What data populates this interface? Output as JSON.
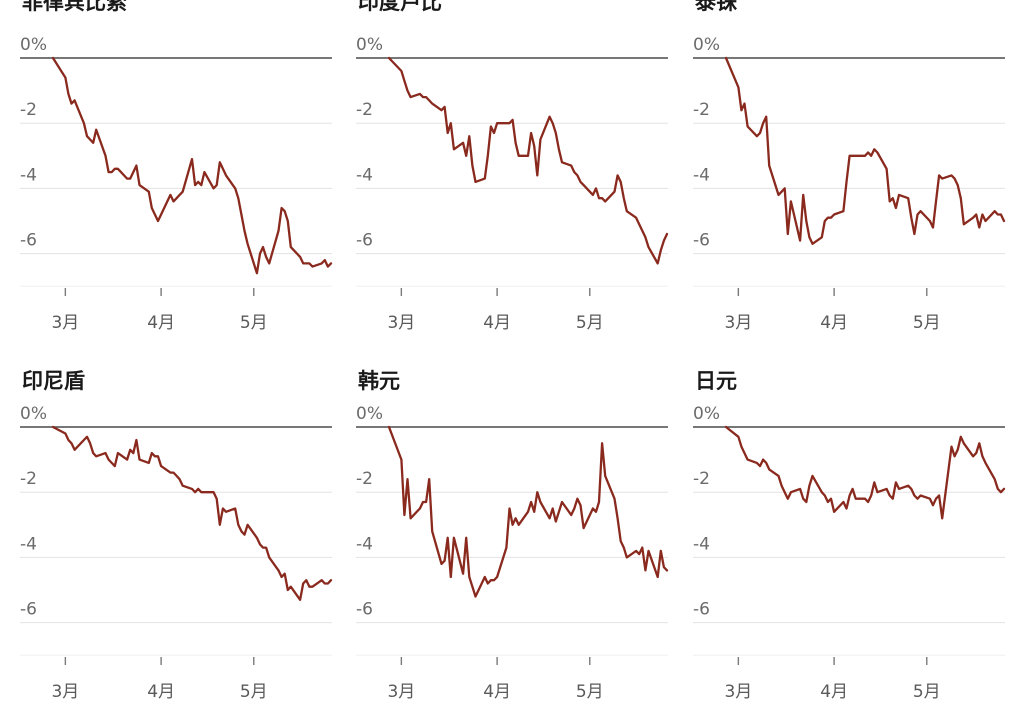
{
  "chart_data": [
    {
      "type": "line",
      "title": "菲律宾比索",
      "y_ticks": [
        "0%",
        "-2",
        "-4",
        "-6"
      ],
      "ylim": [
        -7.2,
        0
      ],
      "x_ticks": [
        "3月",
        "4月",
        "5月"
      ],
      "color": "#8a2a1e",
      "x": [
        "2022-02-25",
        "2022-03-01",
        "2022-03-02",
        "2022-03-03",
        "2022-03-04",
        "2022-03-07",
        "2022-03-08",
        "2022-03-09",
        "2022-03-10",
        "2022-03-11",
        "2022-03-14",
        "2022-03-15",
        "2022-03-16",
        "2022-03-17",
        "2022-03-18",
        "2022-03-21",
        "2022-03-22",
        "2022-03-23",
        "2022-03-24",
        "2022-03-25",
        "2022-03-28",
        "2022-03-29",
        "2022-03-30",
        "2022-03-31",
        "2022-04-01",
        "2022-04-04",
        "2022-04-05",
        "2022-04-06",
        "2022-04-07",
        "2022-04-08",
        "2022-04-11",
        "2022-04-12",
        "2022-04-13",
        "2022-04-14",
        "2022-04-15",
        "2022-04-18",
        "2022-04-19",
        "2022-04-20",
        "2022-04-21",
        "2022-04-22",
        "2022-04-25",
        "2022-04-26",
        "2022-04-27",
        "2022-04-28",
        "2022-04-29",
        "2022-05-02",
        "2022-05-03",
        "2022-05-04",
        "2022-05-05",
        "2022-05-06",
        "2022-05-09",
        "2022-05-10",
        "2022-05-11",
        "2022-05-12",
        "2022-05-13",
        "2022-05-16",
        "2022-05-17",
        "2022-05-18",
        "2022-05-19",
        "2022-05-20",
        "2022-05-23",
        "2022-05-24",
        "2022-05-25",
        "2022-05-26"
      ],
      "values": [
        0,
        -0.6,
        -1.1,
        -1.4,
        -1.3,
        -2.0,
        -2.4,
        -2.5,
        -2.6,
        -2.2,
        -3.0,
        -3.5,
        -3.5,
        -3.4,
        -3.4,
        -3.7,
        -3.7,
        -3.5,
        -3.3,
        -3.9,
        -4.1,
        -4.6,
        -4.8,
        -5.0,
        -4.8,
        -4.2,
        -4.4,
        -4.3,
        -4.2,
        -4.1,
        -3.1,
        -3.9,
        -3.8,
        -3.9,
        -3.5,
        -4.0,
        -3.9,
        -3.2,
        -3.4,
        -3.6,
        -4.0,
        -4.3,
        -4.8,
        -5.3,
        -5.7,
        -6.6,
        -6.0,
        -5.8,
        -6.1,
        -6.3,
        -5.3,
        -4.6,
        -4.7,
        -5.0,
        -5.8,
        -6.1,
        -6.3,
        -6.3,
        -6.3,
        -6.4,
        -6.3,
        -6.2,
        -6.4,
        -6.3
      ]
    },
    {
      "type": "line",
      "title": "印度卢比",
      "y_ticks": [
        "0%",
        "-2",
        "-4",
        "-6"
      ],
      "ylim": [
        -7.2,
        0
      ],
      "x_ticks": [
        "3月",
        "4月",
        "5月"
      ],
      "color": "#8a2a1e",
      "x": [
        "2022-02-25",
        "2022-03-01",
        "2022-03-02",
        "2022-03-03",
        "2022-03-04",
        "2022-03-07",
        "2022-03-08",
        "2022-03-09",
        "2022-03-10",
        "2022-03-11",
        "2022-03-14",
        "2022-03-15",
        "2022-03-16",
        "2022-03-17",
        "2022-03-18",
        "2022-03-21",
        "2022-03-22",
        "2022-03-23",
        "2022-03-24",
        "2022-03-25",
        "2022-03-28",
        "2022-03-29",
        "2022-03-30",
        "2022-03-31",
        "2022-04-01",
        "2022-04-04",
        "2022-04-05",
        "2022-04-06",
        "2022-04-07",
        "2022-04-08",
        "2022-04-11",
        "2022-04-12",
        "2022-04-13",
        "2022-04-14",
        "2022-04-15",
        "2022-04-18",
        "2022-04-19",
        "2022-04-20",
        "2022-04-21",
        "2022-04-22",
        "2022-04-25",
        "2022-04-26",
        "2022-04-27",
        "2022-04-28",
        "2022-04-29",
        "2022-05-02",
        "2022-05-03",
        "2022-05-04",
        "2022-05-05",
        "2022-05-06",
        "2022-05-09",
        "2022-05-10",
        "2022-05-11",
        "2022-05-12",
        "2022-05-13",
        "2022-05-16",
        "2022-05-17",
        "2022-05-18",
        "2022-05-19",
        "2022-05-20",
        "2022-05-23",
        "2022-05-24",
        "2022-05-25",
        "2022-05-26"
      ],
      "values": [
        0,
        -0.4,
        -0.7,
        -1.0,
        -1.2,
        -1.1,
        -1.2,
        -1.2,
        -1.3,
        -1.4,
        -1.6,
        -1.5,
        -2.3,
        -2.0,
        -2.8,
        -2.6,
        -3.0,
        -2.4,
        -3.3,
        -3.8,
        -3.7,
        -3.0,
        -2.1,
        -2.3,
        -2.0,
        -2.0,
        -2.0,
        -1.9,
        -2.6,
        -3.0,
        -3.0,
        -2.3,
        -2.7,
        -3.6,
        -2.5,
        -1.8,
        -2.0,
        -2.3,
        -2.8,
        -3.2,
        -3.3,
        -3.5,
        -3.6,
        -3.8,
        -3.9,
        -4.2,
        -4.0,
        -4.3,
        -4.3,
        -4.4,
        -4.1,
        -3.6,
        -3.8,
        -4.3,
        -4.7,
        -4.9,
        -5.1,
        -5.3,
        -5.5,
        -5.8,
        -6.3,
        -5.9,
        -5.6,
        -5.4
      ]
    },
    {
      "type": "line",
      "title": "泰铢",
      "y_ticks": [
        "0%",
        "-2",
        "-4",
        "-6"
      ],
      "ylim": [
        -7.2,
        0
      ],
      "x_ticks": [
        "3月",
        "4月",
        "5月"
      ],
      "color": "#8a2a1e",
      "x": [
        "2022-02-25",
        "2022-03-01",
        "2022-03-02",
        "2022-03-03",
        "2022-03-04",
        "2022-03-07",
        "2022-03-08",
        "2022-03-09",
        "2022-03-10",
        "2022-03-11",
        "2022-03-14",
        "2022-03-15",
        "2022-03-16",
        "2022-03-17",
        "2022-03-18",
        "2022-03-21",
        "2022-03-22",
        "2022-03-23",
        "2022-03-24",
        "2022-03-25",
        "2022-03-28",
        "2022-03-29",
        "2022-03-30",
        "2022-03-31",
        "2022-04-01",
        "2022-04-04",
        "2022-04-05",
        "2022-04-06",
        "2022-04-07",
        "2022-04-08",
        "2022-04-11",
        "2022-04-12",
        "2022-04-13",
        "2022-04-14",
        "2022-04-15",
        "2022-04-18",
        "2022-04-19",
        "2022-04-20",
        "2022-04-21",
        "2022-04-22",
        "2022-04-25",
        "2022-04-26",
        "2022-04-27",
        "2022-04-28",
        "2022-04-29",
        "2022-05-02",
        "2022-05-03",
        "2022-05-04",
        "2022-05-05",
        "2022-05-06",
        "2022-05-09",
        "2022-05-10",
        "2022-05-11",
        "2022-05-12",
        "2022-05-13",
        "2022-05-16",
        "2022-05-17",
        "2022-05-18",
        "2022-05-19",
        "2022-05-20",
        "2022-05-23",
        "2022-05-24",
        "2022-05-25",
        "2022-05-26"
      ],
      "values": [
        0,
        -0.9,
        -1.6,
        -1.4,
        -2.1,
        -2.4,
        -2.3,
        -2.0,
        -1.8,
        -3.3,
        -4.2,
        -4.1,
        -4.0,
        -5.4,
        -4.4,
        -5.6,
        -4.2,
        -5.0,
        -5.5,
        -5.7,
        -5.5,
        -5.0,
        -4.9,
        -4.9,
        -4.8,
        -4.7,
        -3.8,
        -3.0,
        -3.0,
        -3.0,
        -3.0,
        -2.9,
        -3.0,
        -2.8,
        -2.9,
        -3.4,
        -4.4,
        -4.3,
        -4.6,
        -4.2,
        -4.3,
        -4.9,
        -5.4,
        -4.8,
        -4.7,
        -5.0,
        -5.2,
        -4.4,
        -3.6,
        -3.7,
        -3.6,
        -3.7,
        -3.9,
        -4.3,
        -5.1,
        -4.9,
        -4.8,
        -5.2,
        -4.8,
        -5.0,
        -4.7,
        -4.8,
        -4.8,
        -5.0
      ]
    },
    {
      "type": "line",
      "title": "印尼盾",
      "y_ticks": [
        "0%",
        "-2",
        "-4",
        "-6"
      ],
      "ylim": [
        -7.2,
        0
      ],
      "x_ticks": [
        "3月",
        "4月",
        "5月"
      ],
      "color": "#8a2a1e",
      "x": [
        "2022-02-25",
        "2022-03-01",
        "2022-03-02",
        "2022-03-03",
        "2022-03-04",
        "2022-03-07",
        "2022-03-08",
        "2022-03-09",
        "2022-03-10",
        "2022-03-11",
        "2022-03-14",
        "2022-03-15",
        "2022-03-16",
        "2022-03-17",
        "2022-03-18",
        "2022-03-21",
        "2022-03-22",
        "2022-03-23",
        "2022-03-24",
        "2022-03-25",
        "2022-03-28",
        "2022-03-29",
        "2022-03-30",
        "2022-03-31",
        "2022-04-01",
        "2022-04-04",
        "2022-04-05",
        "2022-04-06",
        "2022-04-07",
        "2022-04-08",
        "2022-04-11",
        "2022-04-12",
        "2022-04-13",
        "2022-04-14",
        "2022-04-15",
        "2022-04-18",
        "2022-04-19",
        "2022-04-20",
        "2022-04-21",
        "2022-04-22",
        "2022-04-25",
        "2022-04-26",
        "2022-04-27",
        "2022-04-28",
        "2022-04-29",
        "2022-05-02",
        "2022-05-03",
        "2022-05-04",
        "2022-05-05",
        "2022-05-06",
        "2022-05-09",
        "2022-05-10",
        "2022-05-11",
        "2022-05-12",
        "2022-05-13",
        "2022-05-16",
        "2022-05-17",
        "2022-05-18",
        "2022-05-19",
        "2022-05-20",
        "2022-05-23",
        "2022-05-24",
        "2022-05-25",
        "2022-05-26"
      ],
      "values": [
        0,
        -0.2,
        -0.4,
        -0.5,
        -0.7,
        -0.4,
        -0.3,
        -0.5,
        -0.8,
        -0.9,
        -0.8,
        -1.0,
        -1.1,
        -1.2,
        -0.8,
        -1.0,
        -0.7,
        -0.8,
        -0.4,
        -1.0,
        -1.1,
        -0.8,
        -0.9,
        -0.9,
        -1.2,
        -1.4,
        -1.4,
        -1.5,
        -1.6,
        -1.8,
        -1.9,
        -2.0,
        -1.9,
        -2.0,
        -2.0,
        -2.0,
        -2.2,
        -3.0,
        -2.5,
        -2.6,
        -2.5,
        -3.0,
        -3.2,
        -3.3,
        -3.0,
        -3.4,
        -3.6,
        -3.7,
        -3.7,
        -4.0,
        -4.4,
        -4.6,
        -4.5,
        -5.0,
        -4.9,
        -5.3,
        -4.8,
        -4.7,
        -4.9,
        -4.9,
        -4.7,
        -4.8,
        -4.8,
        -4.7
      ]
    },
    {
      "type": "line",
      "title": "韩元",
      "y_ticks": [
        "0%",
        "-2",
        "-4",
        "-6"
      ],
      "ylim": [
        -7.2,
        0
      ],
      "x_ticks": [
        "3月",
        "4月",
        "5月"
      ],
      "color": "#8a2a1e",
      "x": [
        "2022-02-25",
        "2022-03-01",
        "2022-03-02",
        "2022-03-03",
        "2022-03-04",
        "2022-03-07",
        "2022-03-08",
        "2022-03-09",
        "2022-03-10",
        "2022-03-11",
        "2022-03-14",
        "2022-03-15",
        "2022-03-16",
        "2022-03-17",
        "2022-03-18",
        "2022-03-21",
        "2022-03-22",
        "2022-03-23",
        "2022-03-24",
        "2022-03-25",
        "2022-03-28",
        "2022-03-29",
        "2022-03-30",
        "2022-03-31",
        "2022-04-01",
        "2022-04-04",
        "2022-04-05",
        "2022-04-06",
        "2022-04-07",
        "2022-04-08",
        "2022-04-11",
        "2022-04-12",
        "2022-04-13",
        "2022-04-14",
        "2022-04-15",
        "2022-04-18",
        "2022-04-19",
        "2022-04-20",
        "2022-04-21",
        "2022-04-22",
        "2022-04-25",
        "2022-04-26",
        "2022-04-27",
        "2022-04-28",
        "2022-04-29",
        "2022-05-02",
        "2022-05-03",
        "2022-05-04",
        "2022-05-05",
        "2022-05-06",
        "2022-05-09",
        "2022-05-10",
        "2022-05-11",
        "2022-05-12",
        "2022-05-13",
        "2022-05-16",
        "2022-05-17",
        "2022-05-18",
        "2022-05-19",
        "2022-05-20",
        "2022-05-23",
        "2022-05-24",
        "2022-05-25",
        "2022-05-26"
      ],
      "values": [
        0,
        -1.0,
        -2.7,
        -1.6,
        -2.8,
        -2.5,
        -2.3,
        -2.3,
        -1.6,
        -3.2,
        -4.2,
        -4.1,
        -3.4,
        -4.6,
        -3.4,
        -4.5,
        -3.4,
        -4.6,
        -4.9,
        -5.2,
        -4.6,
        -4.8,
        -4.7,
        -4.7,
        -4.6,
        -3.7,
        -2.5,
        -3.0,
        -2.8,
        -3.0,
        -2.6,
        -2.3,
        -2.6,
        -2.0,
        -2.3,
        -2.8,
        -2.5,
        -2.9,
        -2.6,
        -2.3,
        -2.7,
        -2.5,
        -2.2,
        -2.4,
        -3.1,
        -2.5,
        -2.6,
        -2.3,
        -0.5,
        -1.5,
        -2.2,
        -2.8,
        -3.5,
        -3.7,
        -4.0,
        -3.8,
        -3.9,
        -3.7,
        -4.4,
        -3.8,
        -4.6,
        -3.8,
        -4.3,
        -4.4
      ]
    },
    {
      "type": "line",
      "title": "日元",
      "y_ticks": [
        "0%",
        "-2",
        "-4",
        "-6"
      ],
      "ylim": [
        -7.2,
        0
      ],
      "x_ticks": [
        "3月",
        "4月",
        "5月"
      ],
      "color": "#8a2a1e",
      "x": [
        "2022-02-25",
        "2022-03-01",
        "2022-03-02",
        "2022-03-03",
        "2022-03-04",
        "2022-03-07",
        "2022-03-08",
        "2022-03-09",
        "2022-03-10",
        "2022-03-11",
        "2022-03-14",
        "2022-03-15",
        "2022-03-16",
        "2022-03-17",
        "2022-03-18",
        "2022-03-21",
        "2022-03-22",
        "2022-03-23",
        "2022-03-24",
        "2022-03-25",
        "2022-03-28",
        "2022-03-29",
        "2022-03-30",
        "2022-03-31",
        "2022-04-01",
        "2022-04-04",
        "2022-04-05",
        "2022-04-06",
        "2022-04-07",
        "2022-04-08",
        "2022-04-11",
        "2022-04-12",
        "2022-04-13",
        "2022-04-14",
        "2022-04-15",
        "2022-04-18",
        "2022-04-19",
        "2022-04-20",
        "2022-04-21",
        "2022-04-22",
        "2022-04-25",
        "2022-04-26",
        "2022-04-27",
        "2022-04-28",
        "2022-04-29",
        "2022-05-02",
        "2022-05-03",
        "2022-05-04",
        "2022-05-05",
        "2022-05-06",
        "2022-05-09",
        "2022-05-10",
        "2022-05-11",
        "2022-05-12",
        "2022-05-13",
        "2022-05-16",
        "2022-05-17",
        "2022-05-18",
        "2022-05-19",
        "2022-05-20",
        "2022-05-23",
        "2022-05-24",
        "2022-05-25",
        "2022-05-26"
      ],
      "values": [
        0,
        -0.3,
        -0.6,
        -0.8,
        -1.0,
        -1.1,
        -1.2,
        -1.0,
        -1.1,
        -1.3,
        -1.5,
        -1.8,
        -2.0,
        -2.2,
        -2.0,
        -1.9,
        -2.2,
        -2.3,
        -1.8,
        -1.5,
        -2.0,
        -2.1,
        -2.3,
        -2.2,
        -2.6,
        -2.3,
        -2.5,
        -2.1,
        -1.9,
        -2.2,
        -2.2,
        -2.3,
        -2.1,
        -1.7,
        -2.0,
        -1.9,
        -2.1,
        -2.2,
        -1.7,
        -1.9,
        -1.8,
        -1.9,
        -2.1,
        -2.2,
        -2.1,
        -2.2,
        -2.4,
        -2.2,
        -2.1,
        -2.8,
        -0.6,
        -0.9,
        -0.7,
        -0.3,
        -0.5,
        -0.9,
        -0.8,
        -0.5,
        -0.9,
        -1.1,
        -1.6,
        -1.9,
        -2.0,
        -1.9
      ]
    }
  ]
}
